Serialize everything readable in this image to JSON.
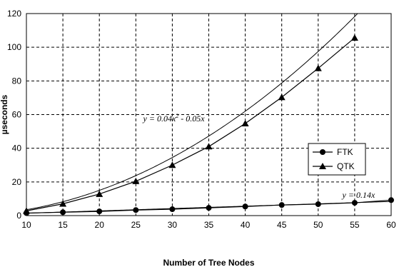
{
  "chart_data": {
    "type": "line",
    "title": "",
    "xlabel": "Number of Tree Nodes",
    "ylabel": "µseconds",
    "x": [
      10,
      15,
      20,
      25,
      30,
      35,
      40,
      45,
      50,
      55,
      60
    ],
    "xlim": [
      10,
      60
    ],
    "ylim": [
      0,
      120
    ],
    "xticks": [
      "10",
      "15",
      "20",
      "25",
      "30",
      "35",
      "40",
      "45",
      "50",
      "55",
      "60"
    ],
    "yticks": [
      "0",
      "20",
      "40",
      "60",
      "80",
      "100",
      "120"
    ],
    "grid": true,
    "grid_style": "dashed",
    "legend_position": "right",
    "series": [
      {
        "name": "FTK",
        "marker": "circle",
        "values": [
          1.5,
          2.0,
          2.5,
          3.3,
          3.8,
          4.6,
          5.4,
          6.3,
          6.8,
          7.6,
          9.2
        ]
      },
      {
        "name": "QTK",
        "marker": "triangle",
        "values": [
          2.8,
          7.0,
          12.8,
          20.4,
          30.0,
          41.0,
          54.7,
          70.3,
          87.5,
          105.6,
          null
        ]
      }
    ],
    "trendlines": [
      {
        "series": "QTK",
        "equation": "y = 0.04x² - 0.05x",
        "a": 0.04,
        "b": -0.05,
        "label_main": "y = 0.04x",
        "label_sup": "2",
        "label_tail": " - 0.05x"
      },
      {
        "series": "FTK",
        "equation": "y = 0.14x",
        "a": 0,
        "b": 0.14,
        "label_main": "y = 0.14x",
        "label_sup": "",
        "label_tail": ""
      }
    ]
  }
}
